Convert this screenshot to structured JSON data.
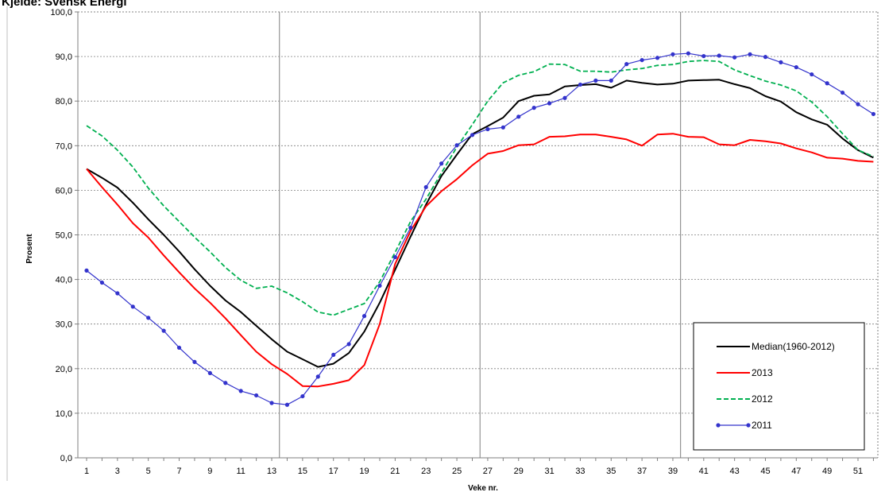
{
  "source_text": "Kjelde: Svensk Energi",
  "chart_data": {
    "type": "line",
    "xlabel": "Veke nr.",
    "ylabel": "Prosent",
    "ylim": [
      0,
      100
    ],
    "xlim": [
      1,
      52
    ],
    "y_ticks": [
      "0,0",
      "10,0",
      "20,0",
      "30,0",
      "40,0",
      "50,0",
      "60,0",
      "70,0",
      "80,0",
      "90,0",
      "100,0"
    ],
    "x_ticks": [
      "1",
      "3",
      "5",
      "7",
      "9",
      "11",
      "13",
      "15",
      "17",
      "19",
      "21",
      "23",
      "25",
      "27",
      "29",
      "31",
      "33",
      "35",
      "37",
      "39",
      "41",
      "43",
      "45",
      "47",
      "49",
      "51"
    ],
    "grid": "horizontal dotted, vertical solid at weeks 13.5, 26.5, 39.5",
    "legend_position": "bottom-right",
    "series": [
      {
        "name": "Median(1960-2012)",
        "color": "#000000",
        "style": "solid",
        "values": [
          64.8,
          62.8,
          60.6,
          57.2,
          53.5,
          50.0,
          46.3,
          42.3,
          38.6,
          35.3,
          32.7,
          29.6,
          26.6,
          23.8,
          22.1,
          20.4,
          21.1,
          23.5,
          28.3,
          34.8,
          42.2,
          49.6,
          56.8,
          63.2,
          68.0,
          72.6,
          74.4,
          76.3,
          80.0,
          81.2,
          81.5,
          83.3,
          83.6,
          83.8,
          83.0,
          84.6,
          84.1,
          83.7,
          83.9,
          84.6,
          84.7,
          84.8,
          83.8,
          82.9,
          81.1,
          79.9,
          77.5,
          75.9,
          74.7,
          71.6,
          69.0,
          67.3
        ]
      },
      {
        "name": "2013",
        "color": "#ff0000",
        "style": "solid",
        "values": [
          64.8,
          60.7,
          56.8,
          52.6,
          49.4,
          45.4,
          41.6,
          38.0,
          34.8,
          31.3,
          27.5,
          23.8,
          21.0,
          18.8,
          16.1,
          16.0,
          16.6,
          17.4,
          20.8,
          30.0,
          43.5,
          50.9,
          56.4,
          59.8,
          62.5,
          65.6,
          68.2,
          68.8,
          70.1,
          70.3,
          72.0,
          72.1,
          72.5,
          72.5,
          72.0,
          71.4,
          70.0,
          72.5,
          72.7,
          72.0,
          71.9,
          70.3,
          70.1,
          71.3,
          71.0,
          70.5,
          69.4,
          68.5,
          67.3,
          67.1,
          66.6,
          66.4
        ]
      },
      {
        "name": "2012",
        "color": "#00b050",
        "style": "dashed",
        "values": [
          74.5,
          72.2,
          69.0,
          65.2,
          60.5,
          56.5,
          53.0,
          49.5,
          46.2,
          42.7,
          39.8,
          38.0,
          38.5,
          37.0,
          35.0,
          32.7,
          32.0,
          33.3,
          34.6,
          39.5,
          46.1,
          53.0,
          58.0,
          63.9,
          69.7,
          74.7,
          80.0,
          84.1,
          85.8,
          86.6,
          88.3,
          88.2,
          86.7,
          86.7,
          86.5,
          87.0,
          87.3,
          88.0,
          88.2,
          88.9,
          89.1,
          88.9,
          87.0,
          85.7,
          84.5,
          83.6,
          82.3,
          79.8,
          76.5,
          72.7,
          69.0,
          67.6
        ]
      },
      {
        "name": "2011",
        "color": "#3333cc",
        "style": "solid-markers",
        "values": [
          42.0,
          39.3,
          36.9,
          33.9,
          31.4,
          28.5,
          24.7,
          21.5,
          19.0,
          16.8,
          15.0,
          14.0,
          12.3,
          11.9,
          13.8,
          18.2,
          23.1,
          25.5,
          31.8,
          38.6,
          45.0,
          51.6,
          60.7,
          66.0,
          70.1,
          72.4,
          73.7,
          74.1,
          76.5,
          78.5,
          79.5,
          80.7,
          83.7,
          84.6,
          84.6,
          88.3,
          89.2,
          89.7,
          90.5,
          90.7,
          90.1,
          90.2,
          89.8,
          90.5,
          89.9,
          88.7,
          87.6,
          86.0,
          84.0,
          81.9,
          79.3,
          77.1
        ]
      }
    ]
  }
}
